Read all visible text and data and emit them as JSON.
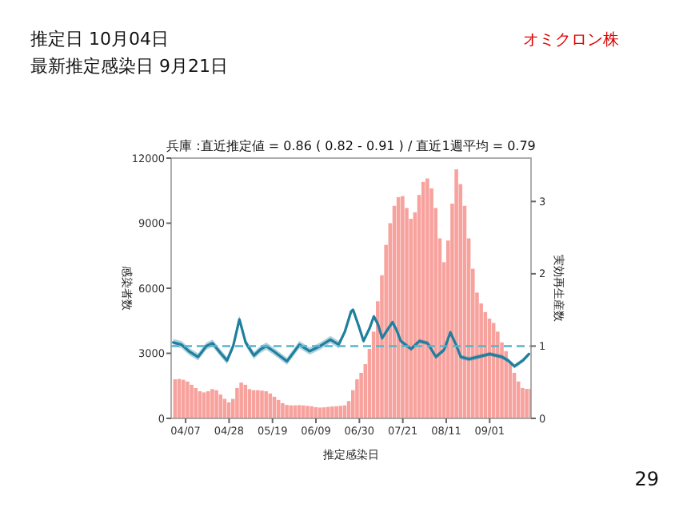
{
  "chart_data": {
    "type": "bar",
    "title": "兵庫 :直近推定値 = 0.86 ( 0.82 - 0.91 ) / 直近1週平均 = 0.79",
    "xlabel": "推定感染日",
    "ylabel": "感染者数",
    "y2label": "実効再生産数",
    "annotations": [
      "推定日  10月04日",
      "最新推定感染日  9月21日",
      "オミクロン株",
      "29"
    ],
    "xlim": [
      "--03-31",
      "--09-21"
    ],
    "xticks": [
      {
        "value": "--04-07",
        "label": "04/07"
      },
      {
        "value": "--04-28",
        "label": "04/28"
      },
      {
        "value": "--05-19",
        "label": "05/19"
      },
      {
        "value": "--06-09",
        "label": "06/09"
      },
      {
        "value": "--06-30",
        "label": "06/30"
      },
      {
        "value": "--07-21",
        "label": "07/21"
      },
      {
        "value": "--08-11",
        "label": "08/11"
      },
      {
        "value": "--09-01",
        "label": "09/01"
      }
    ],
    "ylim": [
      0,
      12000
    ],
    "yticks": [
      0,
      3000,
      6000,
      9000,
      12000
    ],
    "y2lim": [
      0,
      3.6
    ],
    "y2ticks": [
      0,
      1,
      2,
      3
    ],
    "grid": false,
    "ref_lines": [
      {
        "axis": "y2",
        "value": 1,
        "color": "#5ab4cc",
        "line_style": "dashed"
      }
    ],
    "series": [
      {
        "color": "#f8a29e",
        "x": [
          "--04-01",
          "--04-03",
          "--04-05",
          "--04-07",
          "--04-09",
          "--04-11",
          "--04-13",
          "--04-15",
          "--04-17",
          "--04-19",
          "--04-21",
          "--04-23",
          "--04-25",
          "--04-27",
          "--04-29",
          "--05-01",
          "--05-03",
          "--05-05",
          "--05-07",
          "--05-09",
          "--05-11",
          "--05-13",
          "--05-15",
          "--05-17",
          "--05-19",
          "--05-21",
          "--05-23",
          "--05-25",
          "--05-27",
          "--05-29",
          "--05-31",
          "--06-02",
          "--06-04",
          "--06-06",
          "--06-08",
          "--06-10",
          "--06-12",
          "--06-14",
          "--06-16",
          "--06-18",
          "--06-20",
          "--06-22",
          "--06-24",
          "--06-26",
          "--06-28",
          "--06-30",
          "--07-02",
          "--07-04",
          "--07-06",
          "--07-08",
          "--07-10",
          "--07-12",
          "--07-14",
          "--07-16",
          "--07-18",
          "--07-20",
          "--07-22",
          "--07-24",
          "--07-26",
          "--07-28",
          "--07-30",
          "--08-01",
          "--08-03",
          "--08-05",
          "--08-07",
          "--08-09",
          "--08-11",
          "--08-13",
          "--08-15",
          "--08-17",
          "--08-19",
          "--08-21",
          "--08-23",
          "--08-25",
          "--08-27",
          "--08-29",
          "--08-31",
          "--09-02",
          "--09-04",
          "--09-06",
          "--09-08",
          "--09-10",
          "--09-12",
          "--09-14",
          "--09-16",
          "--09-18",
          "--09-20"
        ],
        "values": [
          1800,
          1820,
          1780,
          1700,
          1550,
          1400,
          1250,
          1200,
          1250,
          1350,
          1300,
          1100,
          900,
          740,
          900,
          1400,
          1650,
          1550,
          1350,
          1300,
          1300,
          1280,
          1250,
          1150,
          1000,
          850,
          700,
          620,
          600,
          600,
          610,
          600,
          580,
          560,
          520,
          500,
          510,
          530,
          550,
          560,
          580,
          600,
          800,
          1300,
          1800,
          2100,
          2500,
          3200,
          4000,
          5400,
          6600,
          8000,
          9000,
          9800,
          10200,
          10250,
          9700,
          9200,
          9500,
          10300,
          10900,
          11060,
          10600,
          9700,
          8300,
          7200,
          8200,
          9900,
          11480,
          10800,
          9800,
          8300,
          6900,
          5800,
          5300,
          4900,
          4600,
          4400,
          4000,
          3500,
          3100,
          2600,
          2100,
          1700,
          1400,
          1360,
          1360
        ]
      },
      {
        "type": "line",
        "axis": "y2",
        "color": "#1f7f9f",
        "x": [
          "--04-01",
          "--04-05",
          "--04-09",
          "--04-13",
          "--04-17",
          "--04-20",
          "--04-24",
          "--04-27",
          "--04-30",
          "--05-03",
          "--05-06",
          "--05-10",
          "--05-13",
          "--05-16",
          "--05-20",
          "--05-26",
          "--06-01",
          "--06-06",
          "--06-11",
          "--06-16",
          "--06-20",
          "--06-23",
          "--06-26",
          "--06-27",
          "--06-30",
          "--07-02",
          "--07-05",
          "--07-07",
          "--07-09",
          "--07-11",
          "--07-13",
          "--07-16",
          "--07-18",
          "--07-20",
          "--07-25",
          "--07-29",
          "--08-02",
          "--08-06",
          "--08-10",
          "--08-13",
          "--08-16",
          "--08-18",
          "--08-22",
          "--09-01",
          "--09-07",
          "--09-10",
          "--09-13",
          "--09-17",
          "--09-20"
        ],
        "values": [
          1.05,
          1.02,
          0.92,
          0.85,
          1.0,
          1.04,
          0.9,
          0.8,
          1.0,
          1.37,
          1.05,
          0.87,
          0.95,
          1.0,
          0.92,
          0.79,
          1.02,
          0.93,
          1.0,
          1.09,
          1.02,
          1.2,
          1.48,
          1.5,
          1.25,
          1.07,
          1.25,
          1.41,
          1.3,
          1.11,
          1.2,
          1.33,
          1.22,
          1.07,
          0.96,
          1.07,
          1.04,
          0.85,
          0.95,
          1.19,
          1.0,
          0.85,
          0.82,
          0.89,
          0.85,
          0.8,
          0.72,
          0.8,
          0.89
        ],
        "lower": [
          1.0,
          0.97,
          0.87,
          0.8,
          0.95,
          0.99,
          0.85,
          0.75,
          0.95,
          1.32,
          1.0,
          0.82,
          0.9,
          0.95,
          0.87,
          0.74,
          0.97,
          0.88,
          0.95,
          1.04,
          0.97,
          1.17,
          1.45,
          1.47,
          1.22,
          1.04,
          1.22,
          1.38,
          1.27,
          1.08,
          1.17,
          1.3,
          1.19,
          1.04,
          0.93,
          1.04,
          1.01,
          0.82,
          0.92,
          1.16,
          0.97,
          0.82,
          0.79,
          0.86,
          0.82,
          0.77,
          0.69,
          0.77,
          0.86
        ],
        "upper": [
          1.1,
          1.07,
          0.97,
          0.9,
          1.05,
          1.09,
          0.95,
          0.85,
          1.05,
          1.42,
          1.1,
          0.92,
          1.0,
          1.05,
          0.97,
          0.84,
          1.07,
          0.98,
          1.05,
          1.14,
          1.07,
          1.23,
          1.51,
          1.53,
          1.28,
          1.1,
          1.28,
          1.44,
          1.33,
          1.14,
          1.23,
          1.36,
          1.25,
          1.1,
          0.99,
          1.1,
          1.07,
          0.88,
          0.98,
          1.22,
          1.03,
          0.88,
          0.85,
          0.92,
          0.88,
          0.83,
          0.75,
          0.83,
          0.92
        ]
      }
    ]
  }
}
